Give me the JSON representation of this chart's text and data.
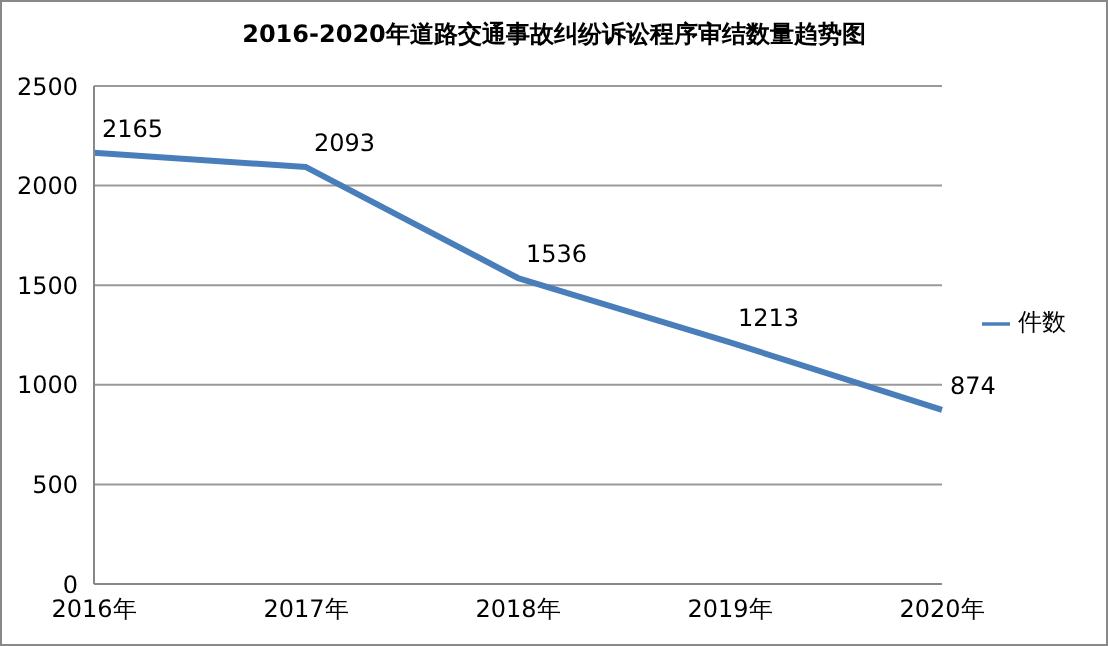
{
  "chart_data": {
    "type": "line",
    "title": "2016-2020年道路交通事故纠纷诉讼程序审结数量趋势图",
    "categories": [
      "2016年",
      "2017年",
      "2018年",
      "2019年",
      "2020年"
    ],
    "series": [
      {
        "name": "件数",
        "color": "#4a7ebb",
        "values": [
          2165,
          2093,
          1536,
          1213,
          874
        ]
      }
    ],
    "ylim": [
      0,
      2500
    ],
    "yticks": [
      0,
      500,
      1000,
      1500,
      2000,
      2500
    ],
    "grid": "y",
    "legend": "right",
    "marker": "none",
    "line_style": "solid",
    "data_labels": true
  }
}
